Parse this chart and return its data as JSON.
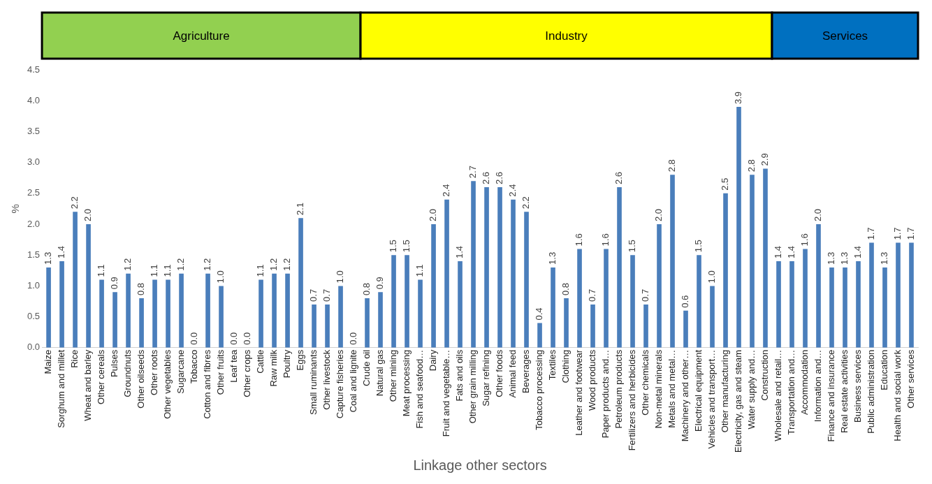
{
  "chart_data": {
    "type": "bar",
    "xlabel": "Linkage other sectors",
    "ylabel": "%",
    "categories": [
      "Maize",
      "Sorghum and millet",
      "Rice",
      "Wheat and barley",
      "Other cereals",
      "Pulses",
      "Groundnuts",
      "Other oilseeds",
      "Other roots",
      "Other vegetables",
      "Sugarcane",
      "Tobacco",
      "Cotton and fibres",
      "Other fruits",
      "Leaf tea",
      "Other crops",
      "Cattle",
      "Raw milk",
      "Poultry",
      "Eggs",
      "Small ruminants",
      "Other livestock",
      "Capture fisheries",
      "Coal and lignite",
      "Crude oil",
      "Natural gas",
      "Other mining",
      "Meat processing",
      "Fish and seafood…",
      "Dairy",
      "Fruit and vegetable…",
      "Fats and oils",
      "Other grain milling",
      "Sugar refining",
      "Other foods",
      "Animal feed",
      "Beverages",
      "Tobacco processing",
      "Textiles",
      "Clothing",
      "Leather and footwear",
      "Wood products",
      "Paper products and…",
      "Petroleum products",
      "Fertilizers and herbicides",
      "Other chemicals",
      "Non-metal minerals",
      "Metals and metal…",
      "Machinery and other…",
      "Electrical equipment",
      "Vehicles and transport…",
      "Other manufacturing",
      "Electricity, gas and steam",
      "Water supply and…",
      "Construction",
      "Wholesale and retail…",
      "Transportation and…",
      "Accommodation",
      "Information and…",
      "Finance and insurance",
      "Real estate activities",
      "Business services",
      "Public administration",
      "Education",
      "Health and social work",
      "Other services"
    ],
    "values": [
      1.3,
      1.4,
      2.2,
      2.0,
      1.1,
      0.9,
      1.2,
      0.8,
      1.1,
      1.1,
      1.2,
      0.0,
      1.2,
      1.0,
      0.0,
      0.0,
      1.1,
      1.2,
      1.2,
      2.1,
      0.7,
      0.7,
      1.0,
      0.0,
      0.8,
      0.9,
      1.5,
      1.5,
      1.1,
      2.0,
      2.4,
      1.4,
      2.7,
      2.6,
      2.6,
      2.4,
      2.2,
      0.4,
      1.3,
      0.8,
      1.6,
      0.7,
      1.6,
      2.6,
      1.5,
      0.7,
      2.0,
      2.8,
      0.6,
      1.5,
      1.0,
      2.5,
      3.9,
      2.8,
      2.9,
      1.4,
      1.4,
      1.6,
      2.0,
      1.3,
      1.3,
      1.4,
      1.7,
      1.3,
      1.7,
      1.7
    ],
    "value_labels": [
      "1.3",
      "1.4",
      "2.2",
      "2.0",
      "1.1",
      "0.9",
      "1.2",
      "0.8",
      "1.1",
      "1.1",
      "1.2",
      "0.0",
      "1.2",
      "1.0",
      "0.0",
      "0.0",
      "1.1",
      "1.2",
      "1.2",
      "2.1",
      "0.7",
      "0.7",
      "1.0",
      "0.0",
      "0.8",
      "0.9",
      "1.5",
      "1.5",
      "1.1",
      "2.0",
      "2.4",
      "1.4",
      "2.7",
      "2.6",
      "2.6",
      "2.4",
      "2.2",
      "0.4",
      "1.3",
      "0.8",
      "1.6",
      "0.7",
      "1.6",
      "2.6",
      "1.5",
      "0.7",
      "2.0",
      "2.8",
      "0.6",
      "1.5",
      "1.0",
      "2.5",
      "3.9",
      "2.8",
      "2.9",
      "1.4",
      "1.4",
      "1.6",
      "2.0",
      "1.3",
      "1.3",
      "1.4",
      "1.7",
      "1.3",
      "1.7",
      "1.7"
    ],
    "color": "#4a7ebb",
    "ylim": [
      0,
      4.5
    ],
    "yticks": [
      {
        "value": 0,
        "label": "0.0"
      },
      {
        "value": 0.5,
        "label": "0.5"
      },
      {
        "value": 1,
        "label": "1.0"
      },
      {
        "value": 1.5,
        "label": "1.5"
      },
      {
        "value": 2,
        "label": "2.0"
      },
      {
        "value": 2.5,
        "label": "2.5"
      },
      {
        "value": 3,
        "label": "3.0"
      },
      {
        "value": 3.5,
        "label": "3.5"
      },
      {
        "value": 4,
        "label": "4.0"
      },
      {
        "value": 4.5,
        "label": "4.5"
      }
    ],
    "annotations": [
      "Agriculture",
      "Industry",
      "Services"
    ],
    "grid": false,
    "legend": false
  }
}
